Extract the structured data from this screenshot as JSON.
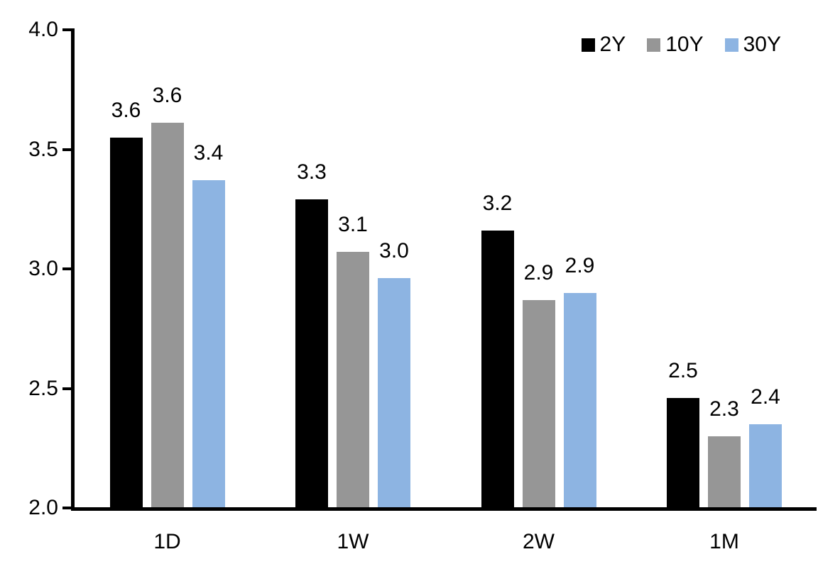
{
  "chart_data": {
    "type": "bar",
    "title": "",
    "xlabel": "",
    "ylabel": "",
    "categories": [
      "1D",
      "1W",
      "2W",
      "1M"
    ],
    "series": [
      {
        "name": "2Y",
        "color": "#000000",
        "values": [
          3.55,
          3.29,
          3.16,
          2.46
        ],
        "labels": [
          "3.6",
          "3.3",
          "3.2",
          "2.5"
        ]
      },
      {
        "name": "10Y",
        "color": "#969696",
        "values": [
          3.61,
          3.07,
          2.87,
          2.3
        ],
        "labels": [
          "3.6",
          "3.1",
          "2.9",
          "2.3"
        ]
      },
      {
        "name": "30Y",
        "color": "#8DB4E2",
        "values": [
          3.37,
          2.96,
          2.9,
          2.35
        ],
        "labels": [
          "3.4",
          "3.0",
          "2.9",
          "2.4"
        ]
      }
    ],
    "ylim": [
      2.0,
      4.0
    ],
    "yticks": [
      "2.0",
      "2.5",
      "3.0",
      "3.5",
      "4.0"
    ],
    "grid": false,
    "legend_position": "top-right",
    "axis_color": "#000000",
    "background_color": "#ffffff"
  }
}
